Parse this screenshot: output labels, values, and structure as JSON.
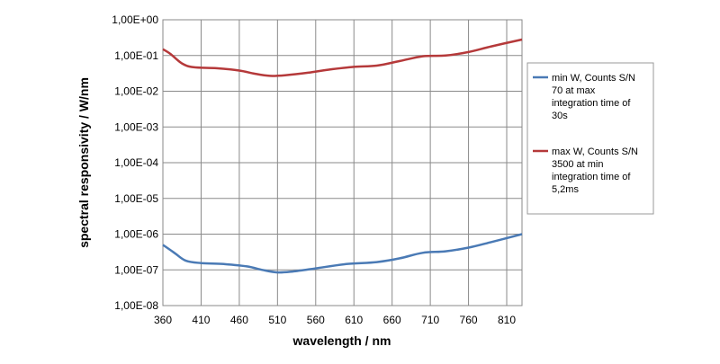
{
  "chart_data": {
    "type": "line",
    "xlabel": "wavelength / nm",
    "ylabel": "spectral responsivity  / W/nm",
    "y_scale": "log",
    "xlim": [
      360,
      830
    ],
    "ylim": [
      1e-08,
      1
    ],
    "x_ticks": [
      360,
      410,
      460,
      510,
      560,
      610,
      660,
      710,
      760,
      810
    ],
    "x_tick_labels": [
      "360",
      "410",
      "460",
      "510",
      "560",
      "610",
      "660",
      "710",
      "760",
      "810"
    ],
    "y_ticks": [
      1,
      0.1,
      0.01,
      0.001,
      0.0001,
      1e-05,
      1e-06,
      1e-07,
      1e-08
    ],
    "y_tick_labels": [
      "1,00E+00",
      "1,00E-01",
      "1,00E-02",
      "1,00E-03",
      "1,00E-04",
      "1,00E-05",
      "1,00E-06",
      "1,00E-07",
      "1,00E-08"
    ],
    "grid": {
      "horizontal": true,
      "vertical": true
    },
    "legend_position": "right",
    "series": [
      {
        "name": "min W, Counts S/N 70 at max integration time of 30s",
        "legend_lines": [
          "min W, Counts S/N",
          "70 at max",
          "integration time of",
          "30s"
        ],
        "color": "#4a7ab5",
        "x": [
          360,
          375,
          390,
          410,
          440,
          470,
          490,
          510,
          530,
          560,
          600,
          640,
          670,
          700,
          730,
          760,
          790,
          830
        ],
        "y": [
          5e-07,
          3e-07,
          1.8e-07,
          1.55e-07,
          1.45e-07,
          1.25e-07,
          1e-07,
          8.5e-08,
          9e-08,
          1.1e-07,
          1.45e-07,
          1.65e-07,
          2.1e-07,
          3e-07,
          3.3e-07,
          4.2e-07,
          6e-07,
          1e-06
        ]
      },
      {
        "name": "max W, Counts S/N 3500 at min integration time of 5,2ms",
        "legend_lines": [
          "max W, Counts S/N",
          "3500 at min",
          "integration time of",
          "5,2ms"
        ],
        "color": "#b5393a",
        "x": [
          360,
          370,
          385,
          400,
          430,
          460,
          480,
          500,
          520,
          550,
          580,
          610,
          640,
          670,
          700,
          730,
          760,
          790,
          830
        ],
        "y": [
          0.15,
          0.11,
          0.06,
          0.047,
          0.044,
          0.038,
          0.031,
          0.027,
          0.028,
          0.033,
          0.041,
          0.048,
          0.052,
          0.07,
          0.095,
          0.1,
          0.125,
          0.18,
          0.28
        ]
      }
    ]
  }
}
